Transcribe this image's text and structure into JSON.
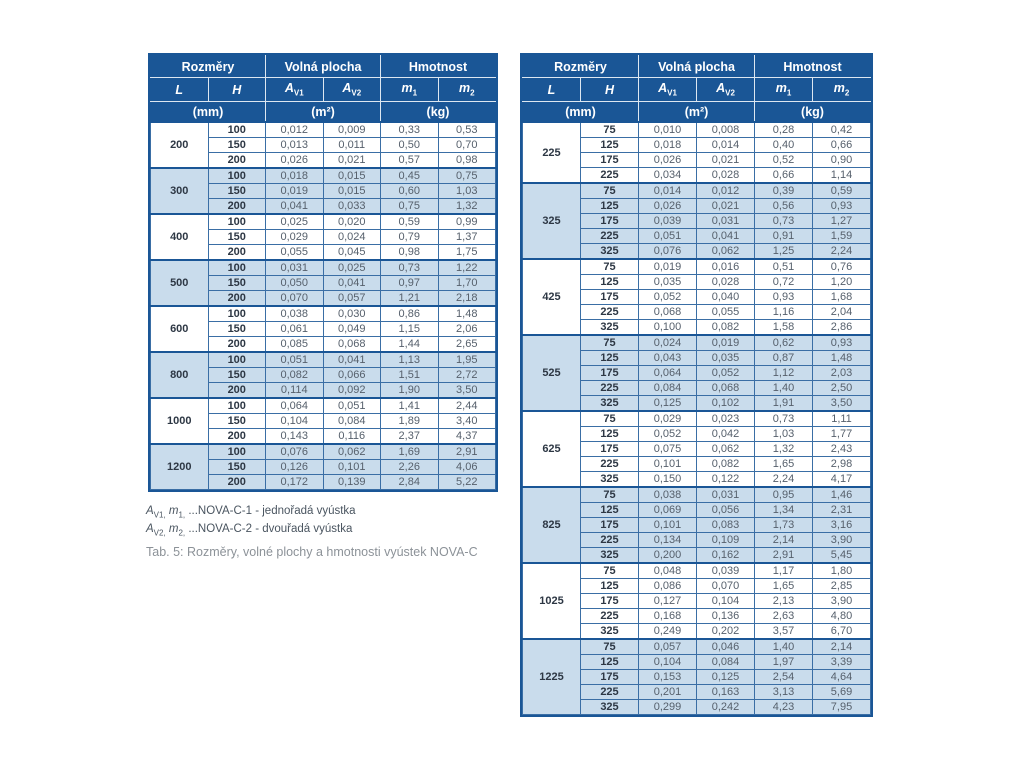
{
  "colors": {
    "header_bg": "#1a5696",
    "row_shaded": "#c9dcec",
    "row_plain": "#ffffff",
    "border_dark": "#1a5696",
    "border_light": "#3a6ea5",
    "value_text": "#56606c",
    "bold_text": "#2d3744",
    "footnote_text": "#4a5560",
    "caption_text": "#8c9298"
  },
  "table_header": {
    "groups": [
      "Rozměry",
      "Volná plocha",
      "Hmotnost"
    ],
    "columns": [
      {
        "base": "L",
        "sub": ""
      },
      {
        "base": "H",
        "sub": ""
      },
      {
        "base": "A",
        "sub": "V1"
      },
      {
        "base": "A",
        "sub": "V2"
      },
      {
        "base": "m",
        "sub": "1"
      },
      {
        "base": "m",
        "sub": "2"
      }
    ],
    "units": [
      "(mm)",
      "(m²)",
      "(kg)"
    ]
  },
  "left_table": {
    "groups": [
      {
        "L": "200",
        "rows": [
          [
            "100",
            "0,012",
            "0,009",
            "0,33",
            "0,53"
          ],
          [
            "150",
            "0,013",
            "0,011",
            "0,50",
            "0,70"
          ],
          [
            "200",
            "0,026",
            "0,021",
            "0,57",
            "0,98"
          ]
        ]
      },
      {
        "L": "300",
        "rows": [
          [
            "100",
            "0,018",
            "0,015",
            "0,45",
            "0,75"
          ],
          [
            "150",
            "0,019",
            "0,015",
            "0,60",
            "1,03"
          ],
          [
            "200",
            "0,041",
            "0,033",
            "0,75",
            "1,32"
          ]
        ]
      },
      {
        "L": "400",
        "rows": [
          [
            "100",
            "0,025",
            "0,020",
            "0,59",
            "0,99"
          ],
          [
            "150",
            "0,029",
            "0,024",
            "0,79",
            "1,37"
          ],
          [
            "200",
            "0,055",
            "0,045",
            "0,98",
            "1,75"
          ]
        ]
      },
      {
        "L": "500",
        "rows": [
          [
            "100",
            "0,031",
            "0,025",
            "0,73",
            "1,22"
          ],
          [
            "150",
            "0,050",
            "0,041",
            "0,97",
            "1,70"
          ],
          [
            "200",
            "0,070",
            "0,057",
            "1,21",
            "2,18"
          ]
        ]
      },
      {
        "L": "600",
        "rows": [
          [
            "100",
            "0,038",
            "0,030",
            "0,86",
            "1,48"
          ],
          [
            "150",
            "0,061",
            "0,049",
            "1,15",
            "2,06"
          ],
          [
            "200",
            "0,085",
            "0,068",
            "1,44",
            "2,65"
          ]
        ]
      },
      {
        "L": "800",
        "rows": [
          [
            "100",
            "0,051",
            "0,041",
            "1,13",
            "1,95"
          ],
          [
            "150",
            "0,082",
            "0,066",
            "1,51",
            "2,72"
          ],
          [
            "200",
            "0,114",
            "0,092",
            "1,90",
            "3,50"
          ]
        ]
      },
      {
        "L": "1000",
        "rows": [
          [
            "100",
            "0,064",
            "0,051",
            "1,41",
            "2,44"
          ],
          [
            "150",
            "0,104",
            "0,084",
            "1,89",
            "3,40"
          ],
          [
            "200",
            "0,143",
            "0,116",
            "2,37",
            "4,37"
          ]
        ]
      },
      {
        "L": "1200",
        "rows": [
          [
            "100",
            "0,076",
            "0,062",
            "1,69",
            "2,91"
          ],
          [
            "150",
            "0,126",
            "0,101",
            "2,26",
            "4,06"
          ],
          [
            "200",
            "0,172",
            "0,139",
            "2,84",
            "5,22"
          ]
        ]
      }
    ]
  },
  "right_table": {
    "groups": [
      {
        "L": "225",
        "rows": [
          [
            "75",
            "0,010",
            "0,008",
            "0,28",
            "0,42"
          ],
          [
            "125",
            "0,018",
            "0,014",
            "0,40",
            "0,66"
          ],
          [
            "175",
            "0,026",
            "0,021",
            "0,52",
            "0,90"
          ],
          [
            "225",
            "0,034",
            "0,028",
            "0,66",
            "1,14"
          ]
        ]
      },
      {
        "L": "325",
        "rows": [
          [
            "75",
            "0,014",
            "0,012",
            "0,39",
            "0,59"
          ],
          [
            "125",
            "0,026",
            "0,021",
            "0,56",
            "0,93"
          ],
          [
            "175",
            "0,039",
            "0,031",
            "0,73",
            "1,27"
          ],
          [
            "225",
            "0,051",
            "0,041",
            "0,91",
            "1,59"
          ],
          [
            "325",
            "0,076",
            "0,062",
            "1,25",
            "2,24"
          ]
        ]
      },
      {
        "L": "425",
        "rows": [
          [
            "75",
            "0,019",
            "0,016",
            "0,51",
            "0,76"
          ],
          [
            "125",
            "0,035",
            "0,028",
            "0,72",
            "1,20"
          ],
          [
            "175",
            "0,052",
            "0,040",
            "0,93",
            "1,68"
          ],
          [
            "225",
            "0,068",
            "0,055",
            "1,16",
            "2,04"
          ],
          [
            "325",
            "0,100",
            "0,082",
            "1,58",
            "2,86"
          ]
        ]
      },
      {
        "L": "525",
        "rows": [
          [
            "75",
            "0,024",
            "0,019",
            "0,62",
            "0,93"
          ],
          [
            "125",
            "0,043",
            "0,035",
            "0,87",
            "1,48"
          ],
          [
            "175",
            "0,064",
            "0,052",
            "1,12",
            "2,03"
          ],
          [
            "225",
            "0,084",
            "0,068",
            "1,40",
            "2,50"
          ],
          [
            "325",
            "0,125",
            "0,102",
            "1,91",
            "3,50"
          ]
        ]
      },
      {
        "L": "625",
        "rows": [
          [
            "75",
            "0,029",
            "0,023",
            "0,73",
            "1,11"
          ],
          [
            "125",
            "0,052",
            "0,042",
            "1,03",
            "1,77"
          ],
          [
            "175",
            "0,075",
            "0,062",
            "1,32",
            "2,43"
          ],
          [
            "225",
            "0,101",
            "0,082",
            "1,65",
            "2,98"
          ],
          [
            "325",
            "0,150",
            "0,122",
            "2,24",
            "4,17"
          ]
        ]
      },
      {
        "L": "825",
        "rows": [
          [
            "75",
            "0,038",
            "0,031",
            "0,95",
            "1,46"
          ],
          [
            "125",
            "0,069",
            "0,056",
            "1,34",
            "2,31"
          ],
          [
            "175",
            "0,101",
            "0,083",
            "1,73",
            "3,16"
          ],
          [
            "225",
            "0,134",
            "0,109",
            "2,14",
            "3,90"
          ],
          [
            "325",
            "0,200",
            "0,162",
            "2,91",
            "5,45"
          ]
        ]
      },
      {
        "L": "1025",
        "rows": [
          [
            "75",
            "0,048",
            "0,039",
            "1,17",
            "1,80"
          ],
          [
            "125",
            "0,086",
            "0,070",
            "1,65",
            "2,85"
          ],
          [
            "175",
            "0,127",
            "0,104",
            "2,13",
            "3,90"
          ],
          [
            "225",
            "0,168",
            "0,136",
            "2,63",
            "4,80"
          ],
          [
            "325",
            "0,249",
            "0,202",
            "3,57",
            "6,70"
          ]
        ]
      },
      {
        "L": "1225",
        "rows": [
          [
            "75",
            "0,057",
            "0,046",
            "1,40",
            "2,14"
          ],
          [
            "125",
            "0,104",
            "0,084",
            "1,97",
            "3,39"
          ],
          [
            "175",
            "0,153",
            "0,125",
            "2,54",
            "4,64"
          ],
          [
            "225",
            "0,201",
            "0,163",
            "3,13",
            "5,69"
          ],
          [
            "325",
            "0,299",
            "0,242",
            "4,23",
            "7,95"
          ]
        ]
      }
    ]
  },
  "footnotes": [
    {
      "symbol_a": "A",
      "sub_a": "V1",
      "symbol_m": "m",
      "sub_m": "1",
      "rest": " ...NOVA-C-1 - jednořadá vyústka"
    },
    {
      "symbol_a": "A",
      "sub_a": "V2",
      "symbol_m": "m",
      "sub_m": "2",
      "rest": " ...NOVA-C-2 - dvouřadá vyústka"
    }
  ],
  "caption": "Tab. 5: Rozměry, volné plochy a hmotnosti vyústek NOVA-C"
}
